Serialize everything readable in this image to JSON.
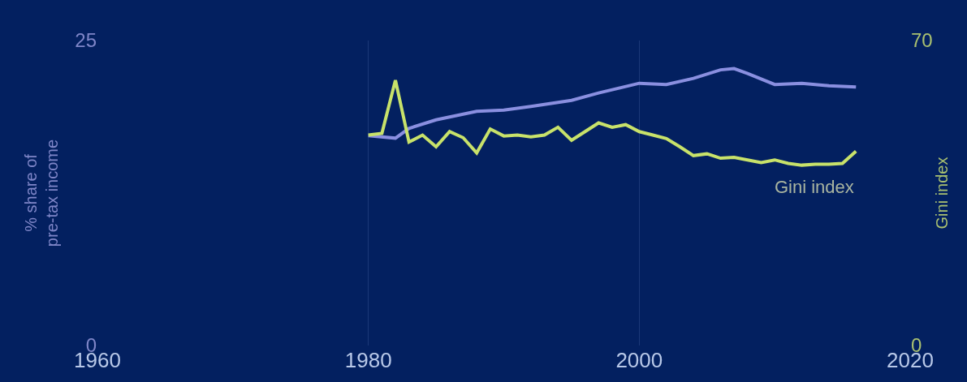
{
  "chart_data": {
    "type": "line",
    "ylabel": "% share of\npre-tax income",
    "y2label": "Gini index",
    "xlim": [
      1960,
      2020
    ],
    "xticks": [
      1960,
      1980,
      2000,
      2020
    ],
    "ylim": [
      0,
      25
    ],
    "yticks": [
      0,
      25
    ],
    "y2lim": [
      0,
      70
    ],
    "y2ticks": [
      0,
      70
    ],
    "grid": "x",
    "legend": false,
    "series": [
      {
        "color": "#8a8fe0",
        "x": [
          1980,
          1982,
          1983,
          1985,
          1988,
          1990,
          1992,
          1995,
          1997,
          2000,
          2002,
          2004,
          2006,
          2007,
          2008,
          2010,
          2012,
          2014,
          2016
        ],
        "values": [
          17.2,
          17.0,
          17.8,
          18.5,
          19.2,
          19.3,
          19.6,
          20.1,
          20.7,
          21.5,
          21.4,
          21.9,
          22.6,
          22.7,
          22.3,
          21.4,
          21.5,
          21.3,
          21.2
        ]
      },
      {
        "name": "Gini index",
        "color": "#c8e26a",
        "axis": "y2",
        "x": [
          1980,
          1981,
          1982,
          1983,
          1984,
          1985,
          1986,
          1987,
          1988,
          1989,
          1990,
          1991,
          1992,
          1993,
          1994,
          1995,
          1996,
          1997,
          1998,
          1999,
          2000,
          2001,
          2002,
          2003,
          2004,
          2005,
          2006,
          2007,
          2008,
          2009,
          2010,
          2011,
          2012,
          2013,
          2014,
          2015,
          2016
        ],
        "values": [
          48.3,
          48.7,
          60.9,
          46.7,
          48.3,
          45.6,
          49.1,
          47.7,
          44.2,
          49.7,
          48.1,
          48.3,
          47.9,
          48.3,
          50.1,
          47.1,
          49.1,
          51.1,
          50.1,
          50.7,
          49.1,
          48.3,
          47.5,
          45.6,
          43.6,
          44.0,
          43.0,
          43.2,
          42.6,
          42.0,
          42.6,
          41.8,
          41.4,
          41.6,
          41.6,
          41.8,
          44.6
        ]
      }
    ]
  }
}
